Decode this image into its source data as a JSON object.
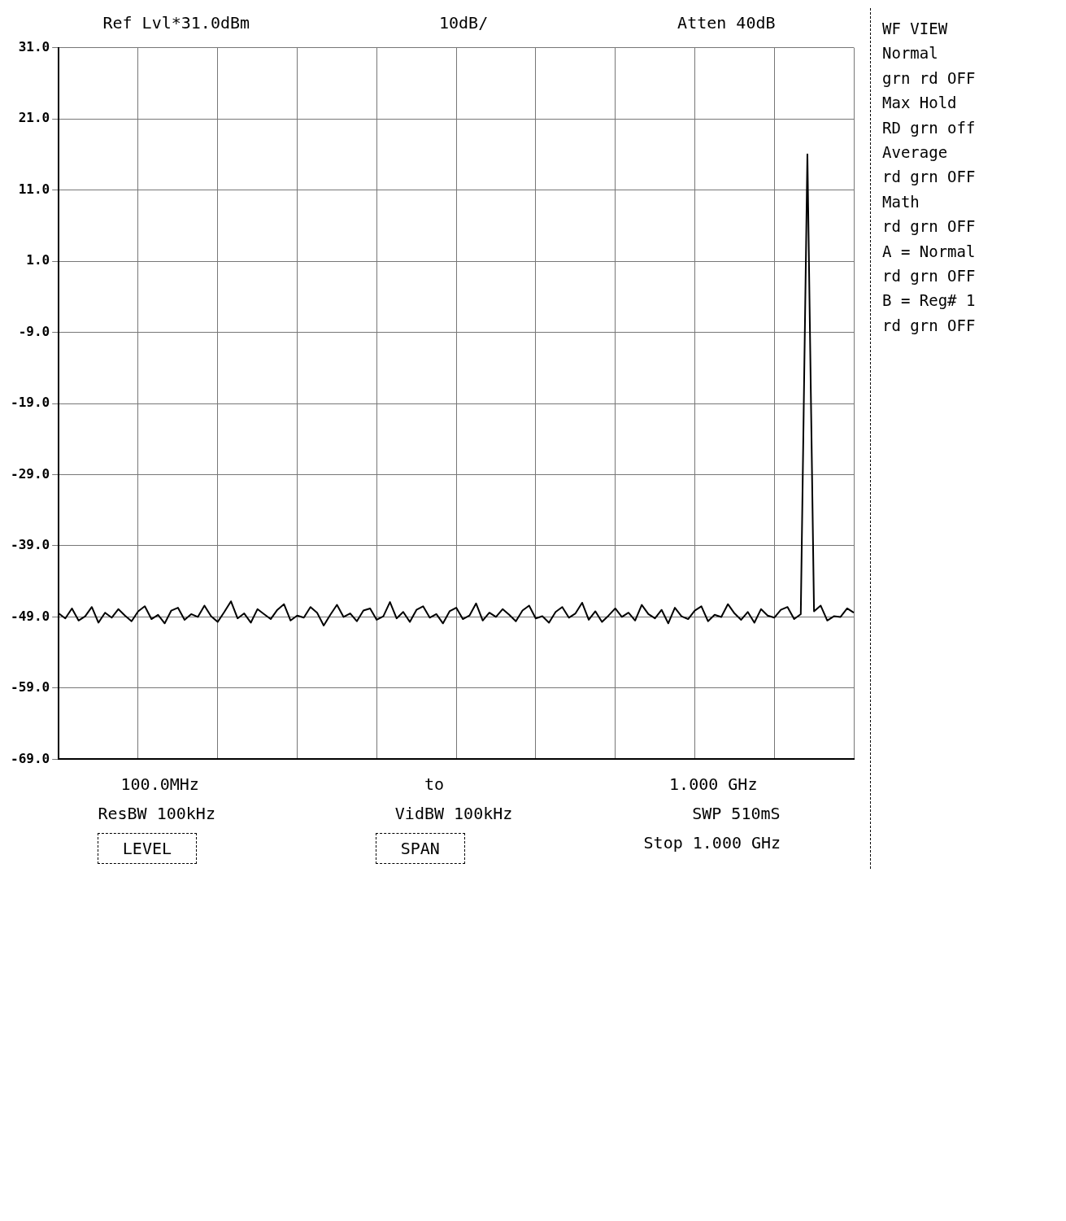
{
  "chart_data": {
    "type": "line",
    "categories": [
      null,
      null,
      null,
      null,
      null,
      null,
      null,
      null,
      null,
      null,
      null,
      null,
      null,
      null,
      null,
      null,
      null,
      null,
      null,
      null,
      null,
      null,
      null,
      null,
      null,
      null,
      null,
      null,
      null,
      null,
      null,
      null,
      null,
      null,
      null,
      null,
      null,
      null,
      null,
      null,
      null,
      null,
      null,
      null,
      null,
      null,
      null,
      null,
      null,
      null,
      null,
      null,
      null,
      null,
      null,
      null,
      null,
      null,
      null,
      null,
      null,
      null,
      null,
      null,
      null,
      null,
      null,
      null,
      null,
      null,
      null,
      null,
      null,
      null,
      null,
      null,
      null,
      null,
      null,
      null,
      null,
      null,
      null,
      null,
      null,
      null,
      null,
      null,
      null,
      null,
      null,
      null,
      null,
      null,
      null,
      null,
      null,
      null,
      null,
      null,
      null,
      null,
      null,
      null,
      null,
      null,
      null,
      null,
      null,
      null,
      null,
      null,
      null,
      null,
      null,
      null,
      null,
      null,
      null,
      null,
      null
    ],
    "series": [
      {
        "color": "#000000",
        "values": [
          -48.5,
          -49.2,
          -47.8,
          -49.5,
          -48.9,
          -47.6,
          -49.8,
          -48.4,
          -49.1,
          -47.9,
          -48.8,
          -49.6,
          -48.2,
          -47.5,
          -49.3,
          -48.7,
          -49.9,
          -48.1,
          -47.7,
          -49.4,
          -48.6,
          -49.0,
          -47.4,
          -48.9,
          -49.7,
          -48.3,
          -46.8,
          -49.2,
          -48.5,
          -49.8,
          -47.9,
          -48.6,
          -49.3,
          -48.0,
          -47.2,
          -49.5,
          -48.8,
          -49.1,
          -47.6,
          -48.4,
          -50.2,
          -48.7,
          -47.3,
          -49.0,
          -48.5,
          -49.6,
          -48.1,
          -47.8,
          -49.4,
          -48.9,
          -46.9,
          -49.2,
          -48.3,
          -49.7,
          -48.0,
          -47.5,
          -49.1,
          -48.6,
          -49.9,
          -48.2,
          -47.7,
          -49.3,
          -48.8,
          -47.1,
          -49.5,
          -48.4,
          -49.0,
          -47.9,
          -48.7,
          -49.6,
          -48.1,
          -47.4,
          -49.2,
          -48.9,
          -49.8,
          -48.3,
          -47.6,
          -49.1,
          -48.5,
          -47.0,
          -49.4,
          -48.2,
          -49.7,
          -48.8,
          -47.8,
          -49.0,
          -48.4,
          -49.5,
          -47.3,
          -48.6,
          -49.2,
          -48.0,
          -49.9,
          -47.7,
          -48.9,
          -49.3,
          -48.1,
          -47.5,
          -49.6,
          -48.7,
          -49.0,
          -47.2,
          -48.5,
          -49.4,
          -48.3,
          -49.8,
          -47.9,
          -48.8,
          -49.1,
          -48.0,
          -47.6,
          -49.3,
          -48.6,
          16,
          -48.2,
          -47.4,
          -49.5,
          -48.9,
          -49.0,
          -47.8,
          -48.4
        ]
      }
    ],
    "ylim": [
      -69,
      31
    ],
    "yticks": [
      {
        "value": -69,
        "label": "-69.0"
      },
      {
        "value": -59,
        "label": "-59.0"
      },
      {
        "value": -49,
        "label": "-49.0"
      },
      {
        "value": -39,
        "label": "-39.0"
      },
      {
        "value": -29,
        "label": "-29.0"
      },
      {
        "value": -19,
        "label": "-19.0"
      },
      {
        "value": -9,
        "label": "-9.0"
      },
      {
        "value": 1,
        "label": "1.0"
      },
      {
        "value": 11,
        "label": "11.0"
      },
      {
        "value": 21,
        "label": "21.0"
      },
      {
        "value": 31,
        "label": "31.0"
      }
    ],
    "grid": true,
    "legend": false,
    "marker": "none",
    "line_style": "solid",
    "tick_labels": "y",
    "annotations": [
      "Ref Lvl*31.0dBm",
      "10dB/",
      "Atten 40dB",
      "100.0MHz",
      "to",
      "1.000 GHz",
      "ResBW 100kHz",
      "VidBW 100kHz",
      "SWP 510mS",
      "LEVEL",
      "SPAN",
      "Stop 1.000 GHz",
      "WF VIEW",
      "Normal",
      "grn rd OFF",
      "Max Hold",
      "RD grn off",
      "Average",
      "rd grn OFF",
      "Math",
      "rd grn OFF",
      "A = Normal",
      "rd grn OFF",
      "B = Reg# 1",
      "rd grn OFF"
    ]
  }
}
